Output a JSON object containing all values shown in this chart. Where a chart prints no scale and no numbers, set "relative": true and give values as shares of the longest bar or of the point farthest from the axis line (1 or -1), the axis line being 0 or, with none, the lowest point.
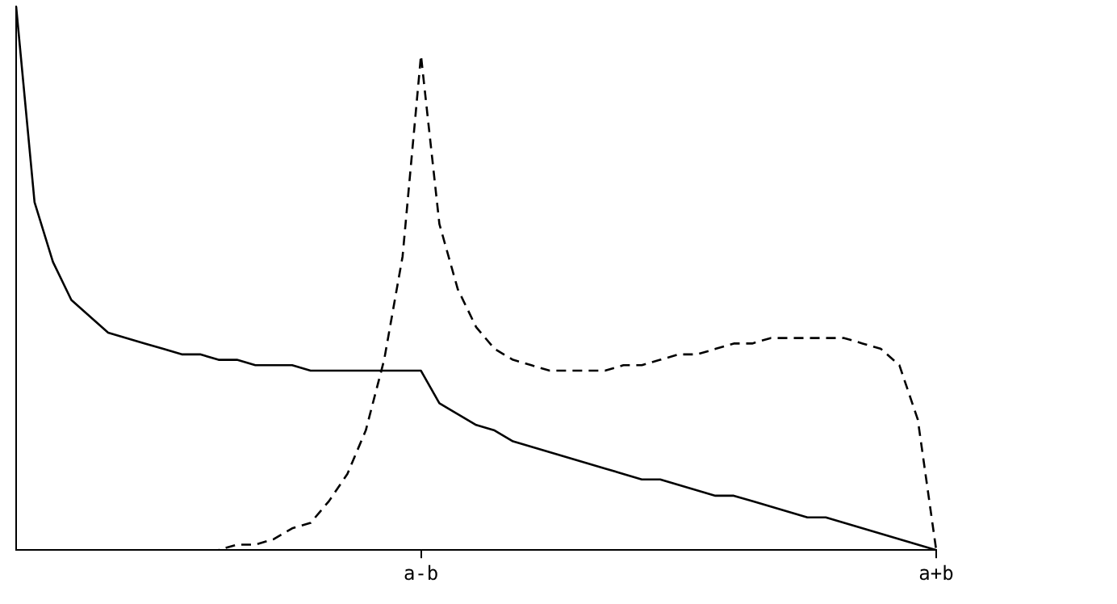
{
  "chart_data": {
    "type": "line",
    "relative": true,
    "categories": [
      null,
      null,
      null,
      null,
      null,
      null,
      null,
      null,
      null,
      null,
      null,
      null,
      null,
      null,
      null,
      null,
      null,
      null,
      null,
      null,
      null,
      null,
      "a-b",
      null,
      null,
      null,
      null,
      null,
      null,
      null,
      null,
      null,
      null,
      null,
      null,
      null,
      null,
      null,
      null,
      null,
      null,
      null,
      null,
      null,
      null,
      null,
      null,
      null,
      null,
      null,
      "a+b"
    ],
    "series": [
      {
        "color": "#000000",
        "line_style": "solid",
        "values": [
          1.0,
          0.64,
          0.53,
          0.46,
          0.43,
          0.4,
          0.39,
          0.38,
          0.37,
          0.36,
          0.36,
          0.35,
          0.35,
          0.34,
          0.34,
          0.34,
          0.33,
          0.33,
          0.33,
          0.33,
          0.33,
          0.33,
          0.33,
          0.27,
          0.25,
          0.23,
          0.22,
          0.2,
          0.19,
          0.18,
          0.17,
          0.16,
          0.15,
          0.14,
          0.13,
          0.13,
          0.12,
          0.11,
          0.1,
          0.1,
          0.09,
          0.08,
          0.07,
          0.06,
          0.06,
          0.05,
          0.04,
          0.03,
          0.02,
          0.01,
          0
        ]
      },
      {
        "color": "#000000",
        "line_style": "dashed",
        "values": [
          0,
          0,
          0,
          0,
          0,
          0,
          0,
          0,
          0,
          0,
          0,
          0.0,
          0.01,
          0.01,
          0.02,
          0.04,
          0.05,
          0.09,
          0.14,
          0.22,
          0.35,
          0.54,
          0.91,
          0.6,
          0.48,
          0.41,
          0.37,
          0.35,
          0.34,
          0.33,
          0.33,
          0.33,
          0.33,
          0.34,
          0.34,
          0.35,
          0.36,
          0.36,
          0.37,
          0.38,
          0.38,
          0.39,
          0.39,
          0.39,
          0.39,
          0.39,
          0.38,
          0.37,
          0.34,
          0.24,
          0
        ]
      }
    ],
    "grid": false,
    "legend": false,
    "marker": "none"
  }
}
